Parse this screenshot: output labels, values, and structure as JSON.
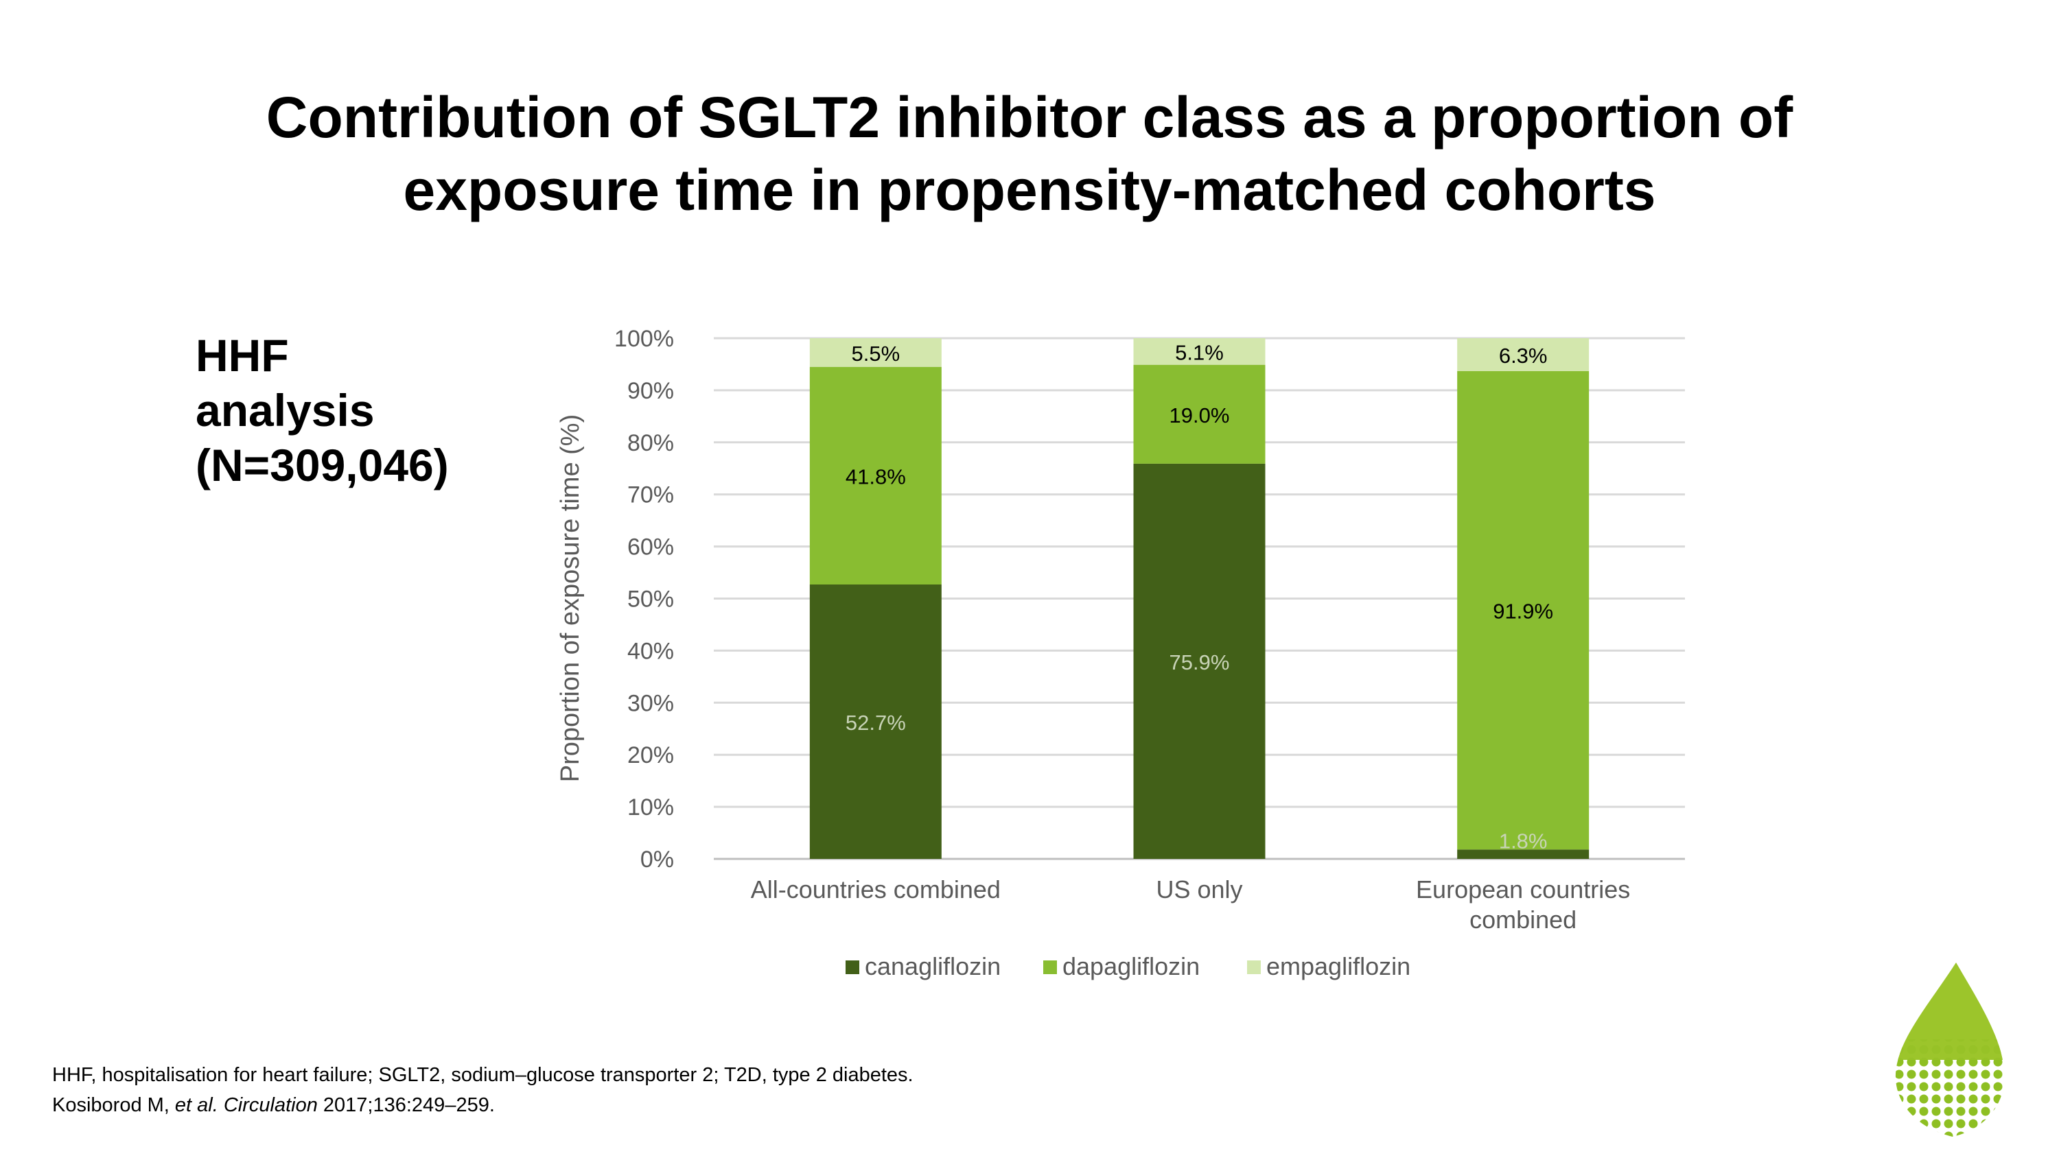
{
  "slide": {
    "title_line1": "Contribution of SGLT2 inhibitor class as a proportion of",
    "title_line2": "exposure time in propensity-matched cohorts",
    "analysis_label": [
      "HHF",
      "analysis",
      "(N=309,046)"
    ],
    "footnote_line1": "HHF, hospitalisation for heart failure; SGLT2, sodium–glucose transporter 2; T2D, type 2 diabetes.",
    "footnote_authors": "Kosiborod M, ",
    "footnote_etal": "et al.",
    "footnote_journal": "Circulation",
    "footnote_rest": " 2017;136:249–259.",
    "logo_icon": "leaf-icon"
  },
  "chart_data": {
    "type": "bar",
    "stacked": true,
    "categories": [
      [
        "All-countries combined"
      ],
      [
        "US only"
      ],
      [
        "European countries",
        "combined"
      ]
    ],
    "series": [
      {
        "name": "canagliflozin",
        "color": "#426018",
        "label_color": "#c9d4b8",
        "values": [
          52.7,
          75.9,
          1.8
        ],
        "labels": [
          "52.7%",
          "75.9%",
          "1.8%"
        ]
      },
      {
        "name": "dapagliflozin",
        "color": "#89bd31",
        "label_color": "#000000",
        "values": [
          41.8,
          19.0,
          91.9
        ],
        "labels": [
          "41.8%",
          "19.0%",
          "91.9%"
        ]
      },
      {
        "name": "empagliflozin",
        "color": "#d3e7ad",
        "label_color": "#000000",
        "values": [
          5.5,
          5.1,
          6.3
        ],
        "labels": [
          "5.5%",
          "5.1%",
          "6.3%"
        ]
      }
    ],
    "ylabel": "Proportion of exposure time (%)",
    "xlabel": "",
    "ylim": [
      0,
      100
    ],
    "yticks": [
      "0%",
      "10%",
      "20%",
      "30%",
      "40%",
      "50%",
      "60%",
      "70%",
      "80%",
      "90%",
      "100%"
    ],
    "grid": true,
    "legend": "bottom"
  }
}
